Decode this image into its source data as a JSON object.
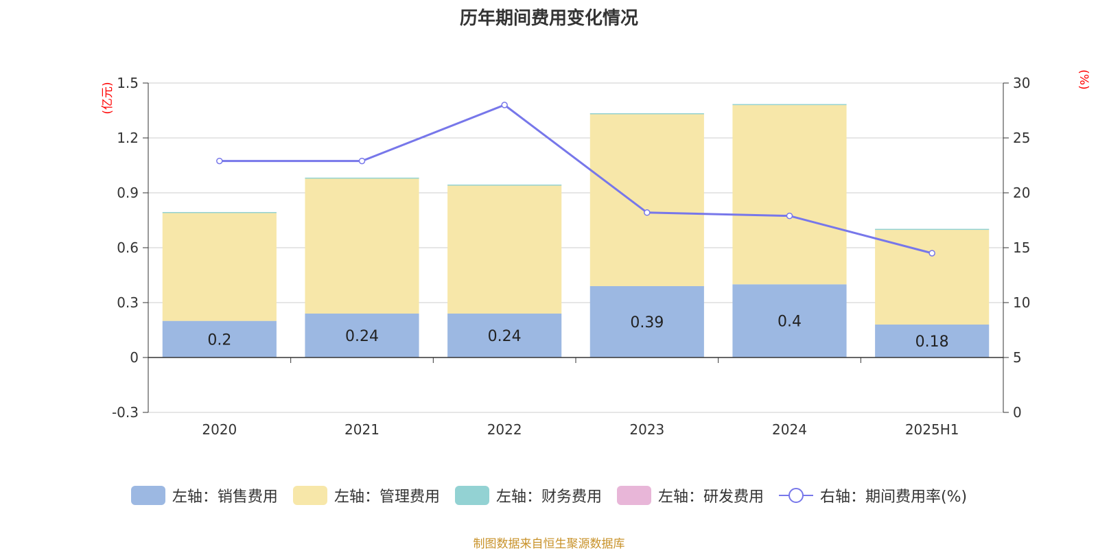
{
  "title": "历年期间费用变化情况",
  "source_text": "制图数据来自恒生聚源数据库",
  "colors": {
    "sales": "#9cb8e2",
    "admin": "#f7e7a9",
    "finance": "#93d2d3",
    "rnd": "#e8b6d8",
    "rate": "#7777ea",
    "unit": "#ff0000",
    "axis": "#333333",
    "grid": "#cccccc"
  },
  "chart_data": {
    "type": "bar",
    "stacked": true,
    "categories": [
      "2020",
      "2021",
      "2022",
      "2023",
      "2024",
      "2025H1"
    ],
    "left_axis": {
      "unit": "(亿元)",
      "ylim": [
        -0.3,
        1.5
      ],
      "ticks": [
        "1.5",
        "1.2",
        "0.9",
        "0.6",
        "0.3",
        "0",
        "-0.3"
      ]
    },
    "right_axis": {
      "unit": "(%)",
      "ylim": [
        0,
        30
      ],
      "ticks": [
        "30",
        "25",
        "20",
        "15",
        "10",
        "5",
        "0"
      ]
    },
    "series": [
      {
        "name": "左轴：销售费用",
        "axis": "left",
        "type": "bar",
        "color_key": "sales",
        "values": [
          0.2,
          0.24,
          0.24,
          0.39,
          0.4,
          0.18
        ],
        "labels": [
          "0.2",
          "0.24",
          "0.24",
          "0.39",
          "0.4",
          "0.18"
        ]
      },
      {
        "name": "左轴：管理费用",
        "axis": "left",
        "type": "bar",
        "color_key": "admin",
        "values": [
          0.59,
          0.74,
          0.7,
          0.94,
          0.98,
          0.52
        ]
      },
      {
        "name": "左轴：财务费用",
        "axis": "left",
        "type": "bar",
        "color_key": "finance",
        "values": [
          0.005,
          0.003,
          0.005,
          0.005,
          0.005,
          0.003
        ]
      },
      {
        "name": "左轴：研发费用",
        "axis": "left",
        "type": "bar",
        "color_key": "rnd",
        "values": [
          0,
          0,
          0,
          0,
          0,
          0
        ]
      },
      {
        "name": "右轴：期间费用率(%)",
        "axis": "right",
        "type": "line",
        "color_key": "rate",
        "values": [
          22.9,
          22.9,
          28.0,
          18.2,
          17.9,
          14.5
        ]
      }
    ],
    "grid": true,
    "legend_position": "bottom-center"
  }
}
